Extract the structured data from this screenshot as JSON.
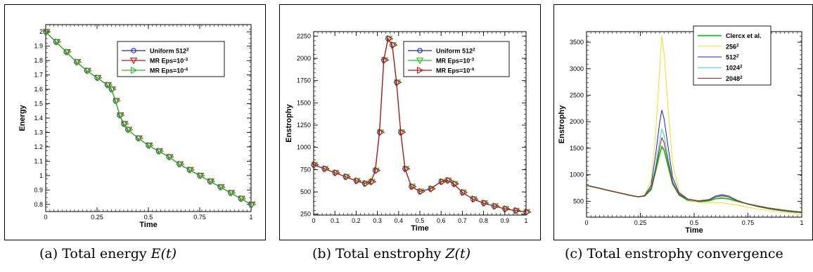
{
  "captions": [
    {
      "label": "(a)",
      "text": "Total energy",
      "math": "E(t)"
    },
    {
      "label": "(b)",
      "text": "Total enstrophy",
      "math": "Z(t)"
    },
    {
      "label": "(c)",
      "text": "Total enstrophy convergence",
      "math": ""
    }
  ],
  "chart_data": [
    {
      "type": "line",
      "xlabel": "Time",
      "ylabel": "Energy",
      "xlim": [
        0,
        1
      ],
      "ylim": [
        0.75,
        2.05
      ],
      "xticks": [
        "0",
        "0.25",
        "0.5",
        "0.75",
        "1"
      ],
      "xtick_values": [
        0,
        0.25,
        0.5,
        0.75,
        1
      ],
      "yticks": [
        "0.8",
        "0.9",
        "1",
        "1.1",
        "1.2",
        "1.3",
        "1.4",
        "1.5",
        "1.6",
        "1.7",
        "1.8",
        "1.9",
        "2"
      ],
      "ytick_values": [
        0.8,
        0.9,
        1.0,
        1.1,
        1.2,
        1.3,
        1.4,
        1.5,
        1.6,
        1.7,
        1.8,
        1.9,
        2.0
      ],
      "legend_position": "top-right",
      "x": [
        0,
        0.05,
        0.1,
        0.15,
        0.2,
        0.25,
        0.3,
        0.32,
        0.34,
        0.36,
        0.38,
        0.4,
        0.45,
        0.5,
        0.55,
        0.6,
        0.65,
        0.7,
        0.75,
        0.8,
        0.85,
        0.9,
        0.95,
        1.0
      ],
      "series": [
        {
          "name": "Uniform 512",
          "sup": "2",
          "color": "#2020e0",
          "marker": "circle",
          "values": [
            2.0,
            1.93,
            1.86,
            1.79,
            1.73,
            1.68,
            1.63,
            1.6,
            1.52,
            1.42,
            1.36,
            1.32,
            1.26,
            1.21,
            1.17,
            1.13,
            1.08,
            1.04,
            1.0,
            0.96,
            0.92,
            0.88,
            0.84,
            0.8
          ]
        },
        {
          "name": "MR Eps=10",
          "sup": "-3",
          "color": "#d01010",
          "marker": "triangle-down",
          "values": [
            2.0,
            1.93,
            1.86,
            1.79,
            1.73,
            1.68,
            1.63,
            1.6,
            1.52,
            1.42,
            1.36,
            1.32,
            1.26,
            1.21,
            1.17,
            1.13,
            1.08,
            1.04,
            1.0,
            0.96,
            0.92,
            0.88,
            0.84,
            0.8
          ]
        },
        {
          "name": "MR Eps=10",
          "sup": "-4",
          "color": "#20c020",
          "marker": "triangle-right",
          "values": [
            2.0,
            1.93,
            1.86,
            1.79,
            1.73,
            1.68,
            1.63,
            1.6,
            1.52,
            1.42,
            1.36,
            1.32,
            1.26,
            1.21,
            1.17,
            1.13,
            1.08,
            1.04,
            1.0,
            0.96,
            0.92,
            0.88,
            0.84,
            0.8
          ]
        }
      ]
    },
    {
      "type": "line",
      "xlabel": "Time",
      "ylabel": "Enstrophy",
      "xlim": [
        0,
        1
      ],
      "ylim": [
        240,
        2300
      ],
      "xticks": [
        "0",
        "0.1",
        "0.2",
        "0.3",
        "0.4",
        "0.5",
        "0.6",
        "0.7",
        "0.8",
        "0.9",
        "1"
      ],
      "xtick_values": [
        0,
        0.1,
        0.2,
        0.3,
        0.4,
        0.5,
        0.6,
        0.7,
        0.8,
        0.9,
        1.0
      ],
      "yticks": [
        "250",
        "500",
        "750",
        "1000",
        "1250",
        "1500",
        "1750",
        "2000",
        "2250"
      ],
      "ytick_values": [
        250,
        500,
        750,
        1000,
        1250,
        1500,
        1750,
        2000,
        2250
      ],
      "legend_position": "top-right",
      "x": [
        0,
        0.05,
        0.1,
        0.15,
        0.2,
        0.24,
        0.27,
        0.29,
        0.31,
        0.33,
        0.35,
        0.37,
        0.39,
        0.41,
        0.43,
        0.46,
        0.5,
        0.55,
        0.6,
        0.63,
        0.66,
        0.7,
        0.75,
        0.8,
        0.85,
        0.9,
        0.95,
        1.0
      ],
      "series": [
        {
          "name": "Uniform 512",
          "sup": "2",
          "color": "#2020e0",
          "marker": "circle",
          "values": [
            805,
            760,
            715,
            670,
            625,
            595,
            615,
            740,
            1170,
            1980,
            2220,
            2150,
            1730,
            1170,
            760,
            560,
            505,
            535,
            615,
            630,
            590,
            495,
            420,
            375,
            340,
            310,
            290,
            275
          ]
        },
        {
          "name": "MR Eps=10",
          "sup": "-3",
          "color": "#20c020",
          "marker": "triangle-down",
          "values": [
            805,
            760,
            715,
            670,
            625,
            595,
            615,
            740,
            1170,
            1980,
            2220,
            2150,
            1730,
            1170,
            760,
            560,
            505,
            535,
            615,
            630,
            590,
            495,
            420,
            375,
            340,
            310,
            290,
            275
          ]
        },
        {
          "name": "MR Eps=10",
          "sup": "-4",
          "color": "#c01010",
          "marker": "triangle-right",
          "values": [
            805,
            760,
            715,
            670,
            625,
            595,
            615,
            740,
            1170,
            1980,
            2220,
            2150,
            1730,
            1170,
            760,
            560,
            505,
            535,
            615,
            630,
            590,
            495,
            420,
            375,
            340,
            310,
            290,
            275
          ]
        }
      ]
    },
    {
      "type": "line",
      "xlabel": "Time",
      "ylabel": "Enstrophy",
      "xlim": [
        0,
        1
      ],
      "ylim": [
        200,
        3700
      ],
      "xticks": [
        "0",
        "0.25",
        "0.5",
        "0.75",
        "1"
      ],
      "xtick_values": [
        0,
        0.25,
        0.5,
        0.75,
        1
      ],
      "yticks": [
        "500",
        "1000",
        "1500",
        "2000",
        "2500",
        "3000",
        "3500"
      ],
      "ytick_values": [
        500,
        1000,
        1500,
        2000,
        2500,
        3000,
        3500
      ],
      "legend_position": "top-right",
      "x": [
        0,
        0.05,
        0.1,
        0.15,
        0.2,
        0.24,
        0.27,
        0.3,
        0.32,
        0.34,
        0.35,
        0.36,
        0.38,
        0.4,
        0.43,
        0.47,
        0.52,
        0.57,
        0.6,
        0.63,
        0.66,
        0.7,
        0.75,
        0.8,
        0.85,
        0.9,
        0.95,
        1.0
      ],
      "series": [
        {
          "name": "Clercx et al.",
          "sup": "",
          "color": "#10c010",
          "width": 1.8,
          "values": [
            800,
            755,
            705,
            660,
            615,
            585,
            600,
            720,
            1050,
            1400,
            1530,
            1470,
            1150,
            830,
            620,
            520,
            490,
            510,
            550,
            560,
            545,
            500,
            450,
            410,
            370,
            340,
            315,
            295
          ]
        },
        {
          "name": "256",
          "sup": "2",
          "color": "#f0e020",
          "width": 1.0,
          "values": [
            800,
            755,
            705,
            660,
            615,
            585,
            615,
            900,
            1700,
            3000,
            3620,
            3300,
            2200,
            1200,
            700,
            530,
            480,
            470,
            470,
            470,
            455,
            430,
            390,
            350,
            320,
            295,
            275,
            255
          ]
        },
        {
          "name": "512",
          "sup": "2",
          "color": "#2020c0",
          "width": 1.0,
          "values": [
            800,
            755,
            705,
            660,
            615,
            585,
            610,
            800,
            1350,
            1990,
            2220,
            2060,
            1500,
            950,
            660,
            545,
            510,
            535,
            600,
            625,
            600,
            520,
            445,
            395,
            355,
            325,
            300,
            285
          ]
        },
        {
          "name": "1024",
          "sup": "2",
          "color": "#30d0e0",
          "width": 1.0,
          "values": [
            800,
            755,
            705,
            660,
            615,
            585,
            605,
            760,
            1150,
            1650,
            1860,
            1750,
            1300,
            880,
            640,
            540,
            505,
            530,
            590,
            610,
            590,
            515,
            450,
            400,
            360,
            330,
            305,
            290
          ]
        },
        {
          "name": "2048",
          "sup": "2",
          "color": "#b01010",
          "width": 1.0,
          "values": [
            800,
            755,
            705,
            660,
            615,
            585,
            603,
            740,
            1080,
            1520,
            1700,
            1610,
            1230,
            850,
            630,
            535,
            500,
            525,
            580,
            600,
            580,
            510,
            448,
            400,
            362,
            332,
            307,
            292
          ]
        }
      ]
    }
  ]
}
